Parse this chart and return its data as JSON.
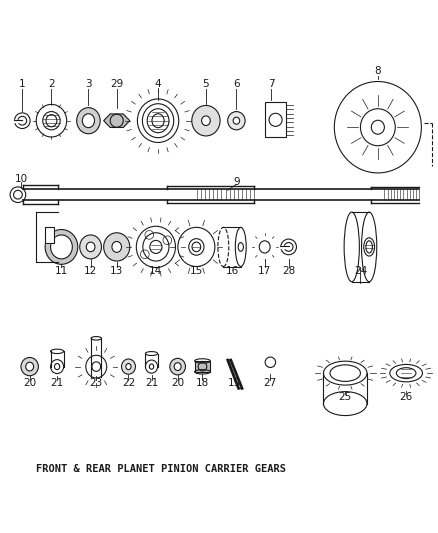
{
  "title": "FRONT & REAR PLANET PINION CARRIER GEARS",
  "bg_color": "#ffffff",
  "line_color": "#1a1a1a",
  "fig_width": 4.38,
  "fig_height": 5.33,
  "dpi": 100
}
